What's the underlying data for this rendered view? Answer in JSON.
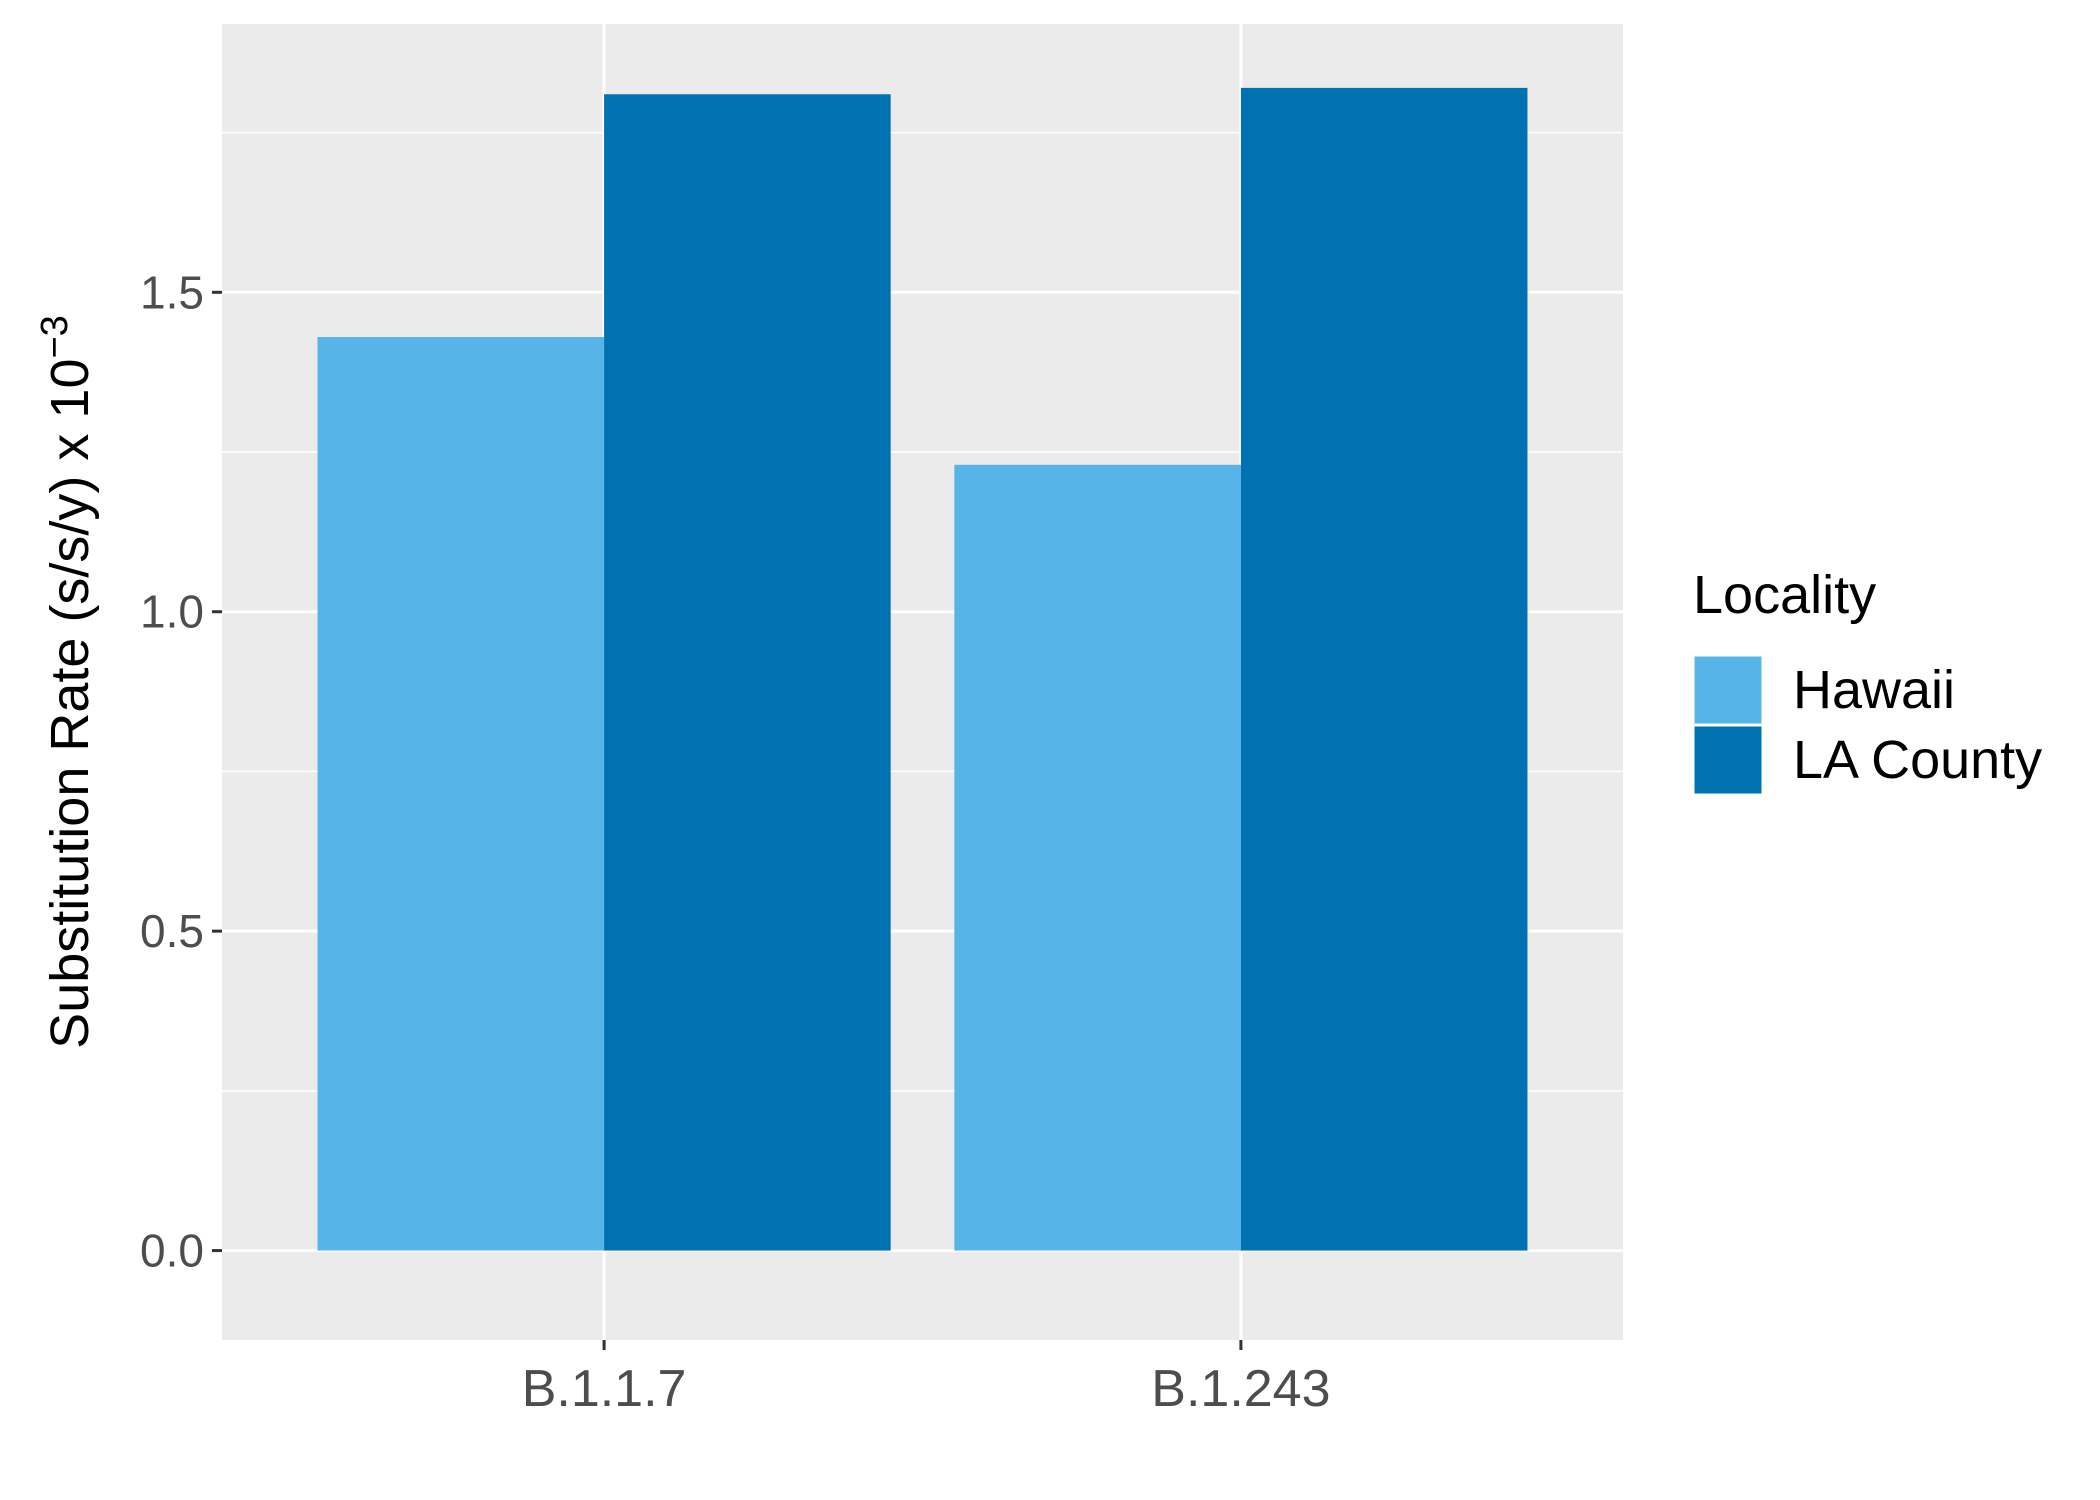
{
  "chart_data": {
    "type": "bar",
    "categories": [
      "B.1.1.7",
      "B.1.243"
    ],
    "series": [
      {
        "name": "Hawaii",
        "color": "#56b4e9",
        "values": [
          1.43,
          1.23
        ]
      },
      {
        "name": "LA County",
        "color": "#0072b2",
        "values": [
          1.81,
          1.82
        ]
      }
    ],
    "xlabel": "",
    "ylabel": {
      "text": "Substitution Rate (s/s/y) x  10",
      "superscript": "−3"
    },
    "ylim": [
      -0.14,
      1.92
    ],
    "yticks": [
      0.0,
      0.5,
      1.0,
      1.5
    ],
    "ytick_labels": [
      "0.0",
      "0.5",
      "1.0",
      "1.5"
    ],
    "grid": true,
    "legend": {
      "title": "Locality",
      "position": "right"
    }
  }
}
